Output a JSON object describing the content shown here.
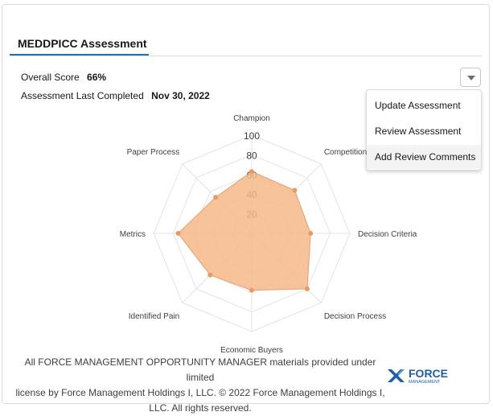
{
  "card": {
    "title": "MEDDPICC Assessment"
  },
  "summary": {
    "overall_score_label": "Overall Score",
    "overall_score_value": "66%",
    "last_completed_label": "Assessment Last Completed",
    "last_completed_value": "Nov 30, 2022"
  },
  "actions_menu": {
    "button_icon": "chevron-down-icon",
    "items": [
      {
        "label": "Update Assessment"
      },
      {
        "label": "Review Assessment"
      },
      {
        "label": "Add Review Comments"
      }
    ],
    "hovered_index": 2
  },
  "chart_data": {
    "type": "radar",
    "categories": [
      "Champion",
      "Competition",
      "Decision Criteria",
      "Decision Process",
      "Economic Buyers",
      "Identified Pain",
      "Metrics",
      "Paper Process"
    ],
    "series": [
      {
        "values": [
          63,
          62,
          60,
          80,
          58,
          60,
          75,
          52
        ]
      }
    ],
    "rlim": [
      0,
      100
    ],
    "rticks": [
      "20",
      "40",
      "60",
      "80",
      "100"
    ],
    "colors": {
      "fill": "#f5b88a",
      "stroke": "#e8a06c",
      "point": "#e89a66",
      "grid": "#e3e3e3"
    }
  },
  "footer": {
    "line1": "All FORCE MANAGEMENT OPPORTUNITY MANAGER materials provided under limited",
    "line2": "license by Force Management Holdings I, LLC. © 2022 Force Management Holdings I,",
    "line3": "LLC. All rights reserved.",
    "logo_text_main": "FORCE",
    "logo_text_sub": "MANAGEMENT",
    "logo_color": "#1a5fa8"
  }
}
